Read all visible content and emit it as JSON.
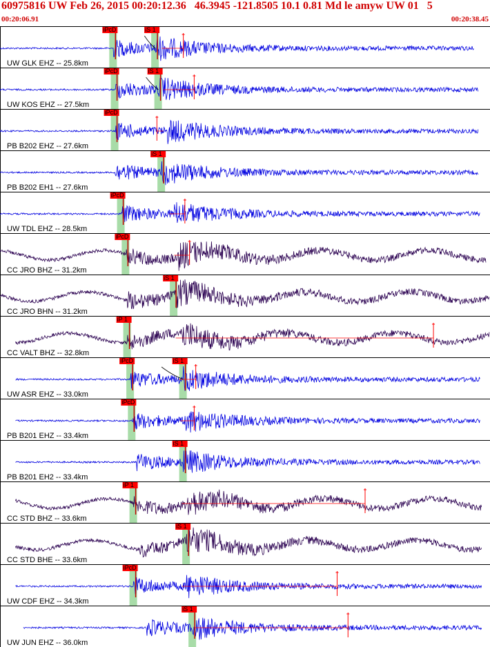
{
  "header": {
    "title": "60975816 UW Feb 26, 2015 00:20:12.36   46.3945 -121.8505 10.1 0.81 Md le amyw UW 01   5",
    "start_time": "00:20:06.91",
    "end_time": "00:20:38.45"
  },
  "colors": {
    "blue_trace": "#0000e0",
    "dark_trace": "#2a0050",
    "pick_box": "#ff0000",
    "pick_window": "#a8dca8",
    "header_text": "#d00000"
  },
  "chart_data": {
    "type": "seismogram",
    "x_axis": {
      "start": "00:20:06.91",
      "end": "00:20:38.45",
      "unit": "s",
      "span": 31.54
    },
    "traces": [
      {
        "label": "UW GLK EHZ -- 25.8km",
        "color": "blue",
        "p": {
          "pick": "iPcD",
          "t": 7.3
        },
        "s": {
          "pick": "iS 1",
          "t": 10.0
        },
        "coda": 11.8,
        "tstart": 0.0,
        "tend": 30.5
      },
      {
        "label": "UW KOS EHZ -- 27.5km",
        "color": "blue",
        "p": {
          "pick": "iPcD",
          "t": 7.4
        },
        "s": {
          "pick": "iS 1",
          "t": 10.2
        },
        "coda": 12.5,
        "tstart": 0.0,
        "tend": 30.8
      },
      {
        "label": "PB B202 EHZ -- 27.6km",
        "color": "blue",
        "p": {
          "pick": "iPcD",
          "t": 7.4
        },
        "s": null,
        "coda": 10.1,
        "tstart": 0.0,
        "tend": 30.8
      },
      {
        "label": "PB B202 EH1 -- 27.6km",
        "color": "blue",
        "p": null,
        "s": {
          "pick": "iS 1",
          "t": 10.4
        },
        "coda": null,
        "tstart": 0.0,
        "tend": 30.8
      },
      {
        "label": "UW TDL EHZ -- 28.5km",
        "color": "blue",
        "p": {
          "pick": "iPcD",
          "t": 7.8
        },
        "s": null,
        "coda": 11.9,
        "tstart": 0.0,
        "tend": 30.9
      },
      {
        "label": "CC JRO BHZ -- 31.2km",
        "color": "dark",
        "p": {
          "pick": "iPcD",
          "t": 8.1
        },
        "s": null,
        "coda": 12.2,
        "tstart": 0.0,
        "tend": 31.3
      },
      {
        "label": "CC JRO BHN -- 31.2km",
        "color": "dark",
        "p": null,
        "s": {
          "pick": "iS 1",
          "t": 11.2
        },
        "coda": null,
        "tstart": 0.0,
        "tend": 31.5
      },
      {
        "label": "CC VALT BHZ -- 32.8km",
        "color": "dark",
        "p": {
          "pick": "iP 1",
          "t": 8.2
        },
        "s": null,
        "coda": 27.9,
        "tstart": 1.0,
        "tend": 31.5
      },
      {
        "label": "UW ASR EHZ -- 33.0km",
        "color": "blue",
        "p": {
          "pick": "iPcD",
          "t": 8.4
        },
        "s": {
          "pick": "iS 1",
          "t": 11.8
        },
        "coda": 12.6,
        "tstart": 1.0,
        "tend": 30.9
      },
      {
        "label": "PB B201 EHZ -- 33.4km",
        "color": "blue",
        "p": {
          "pick": "iPcD",
          "t": 8.5
        },
        "s": null,
        "coda": 12.5,
        "tstart": 1.0,
        "tend": 30.9
      },
      {
        "label": "PB B201 EH2 -- 33.4km",
        "color": "blue",
        "p": null,
        "s": {
          "pick": "iS 1",
          "t": 11.8
        },
        "coda": null,
        "tstart": 1.0,
        "tend": 30.9
      },
      {
        "label": "CC STD BHZ -- 33.6km",
        "color": "dark",
        "p": {
          "pick": "iP 1",
          "t": 8.6
        },
        "s": null,
        "coda": 23.5,
        "tstart": 1.0,
        "tend": 31.0
      },
      {
        "label": "CC STD BHE -- 33.6km",
        "color": "dark",
        "p": null,
        "s": {
          "pick": "iS 1",
          "t": 12.0
        },
        "coda": null,
        "tstart": 1.0,
        "tend": 31.0
      },
      {
        "label": "UW CDF EHZ -- 34.3km",
        "color": "blue",
        "p": {
          "pick": "iPcD",
          "t": 8.6
        },
        "s": null,
        "coda": 21.7,
        "tstart": 1.0,
        "tend": 31.0
      },
      {
        "label": "UW JUN EHZ -- 36.0km",
        "color": "blue",
        "p": null,
        "s": {
          "pick": "iS 1",
          "t": 12.4
        },
        "coda": 22.4,
        "tstart": 1.5,
        "tend": 31.0
      }
    ]
  }
}
